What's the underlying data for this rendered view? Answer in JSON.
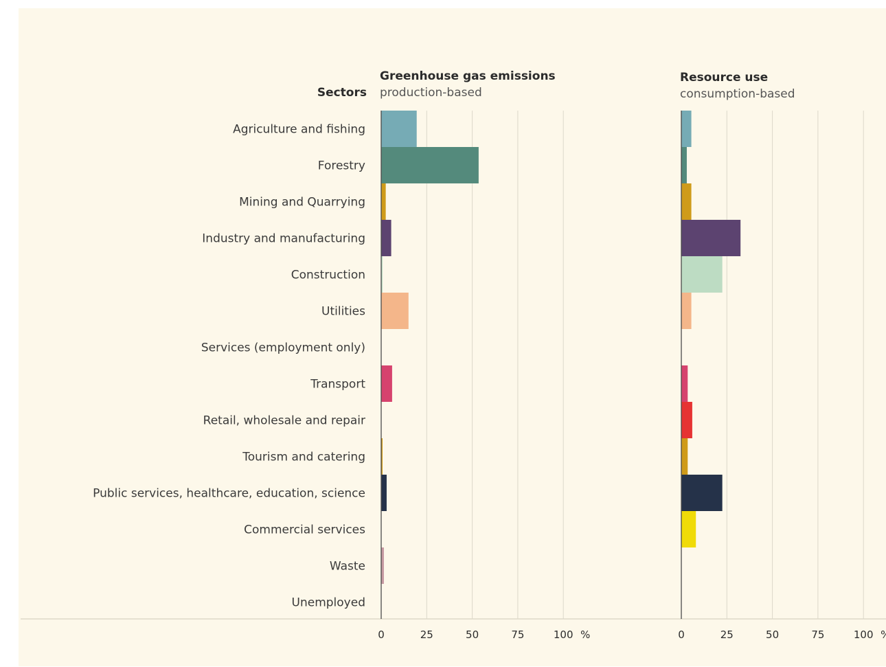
{
  "chart_data": {
    "type": "bar",
    "orientation": "horizontal",
    "sectors_header": "Sectors",
    "unit_label": "%",
    "categories": [
      "Agriculture and fishing",
      "Forestry",
      "Mining and Quarrying",
      "Industry and manufacturing",
      "Construction",
      "Utilities",
      "Services (employment only)",
      "Transport",
      "Retail, wholesale and repair",
      "Tourism and catering",
      "Public services, healthcare, education, science",
      "Commercial services",
      "Waste",
      "Unemployed"
    ],
    "colors": [
      "#76abb5",
      "#548a7c",
      "#cf9b1a",
      "#5c4370",
      "#bddcc3",
      "#f4b68a",
      "#d8d4c8",
      "#d6436e",
      "#e63333",
      "#cf9b1a",
      "#253249",
      "#f0db08",
      "#c79aa2",
      "#d8d4c8"
    ],
    "panels": [
      {
        "title": "Greenhouse gas emissions",
        "subtitle": "production-based",
        "values": [
          19.5,
          53.5,
          2.5,
          5.5,
          0.3,
          15.0,
          0,
          6.0,
          0,
          0.3,
          3.0,
          0,
          1.5,
          0
        ],
        "xlim": [
          0,
          100
        ],
        "ticks": [
          0,
          25,
          50,
          75,
          100
        ]
      },
      {
        "title": "Resource use",
        "subtitle": "consumption-based",
        "values": [
          5.5,
          3.0,
          5.5,
          32.5,
          22.5,
          5.5,
          0,
          3.5,
          6.0,
          3.5,
          22.5,
          8.0,
          0,
          0
        ],
        "xlim": [
          0,
          100
        ],
        "ticks": [
          0,
          25,
          50,
          75,
          100
        ]
      }
    ],
    "grid": true
  }
}
